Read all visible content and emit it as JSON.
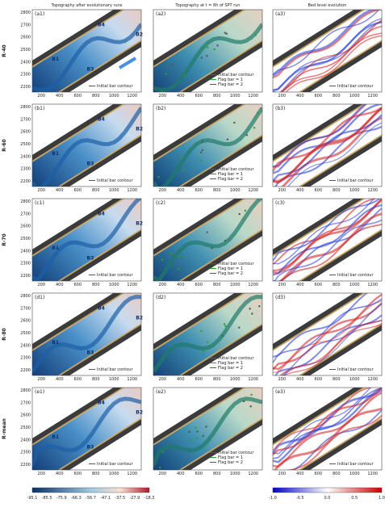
{
  "columns": [
    "Topography after evolutionary runs",
    "Topography at t = 8h of SPT run",
    "Bed level evolution"
  ],
  "rows": [
    {
      "label": "R-40",
      "panels": [
        "(a1)",
        "(a2)",
        "(a3)"
      ]
    },
    {
      "label": "R-60",
      "panels": [
        "(b1)",
        "(b2)",
        "(b3)"
      ]
    },
    {
      "label": "R-70",
      "panels": [
        "(c1)",
        "(c2)",
        "(c3)"
      ]
    },
    {
      "label": "R-80",
      "panels": [
        "(d1)",
        "(d2)",
        "(d3)"
      ]
    },
    {
      "label": "R-mean",
      "panels": [
        "(e1)",
        "(e2)",
        "(e3)"
      ]
    }
  ],
  "y_ticks": [
    "2800",
    "2700",
    "2600",
    "2500",
    "2400",
    "2300",
    "2200"
  ],
  "x_ticks": [
    "200",
    "400",
    "600",
    "800",
    "1000",
    "1200"
  ],
  "bar_labels": [
    "B1",
    "B2",
    "B3",
    "B4"
  ],
  "legend": {
    "initial": "Initial bar contour",
    "flag1": "Flag bar = 1",
    "flag2": "Flag bar = 2"
  },
  "colorbars": [
    {
      "ticks": [
        "-95.1",
        "-85.5",
        "-75.9",
        "-66.3",
        "-56.7",
        "-47.1",
        "-37.5",
        "-27.9",
        "-18.3"
      ]
    },
    {
      "ticks": [
        "-1.0",
        "-0.5",
        "0.0",
        "0.5",
        "1.0"
      ]
    }
  ]
}
